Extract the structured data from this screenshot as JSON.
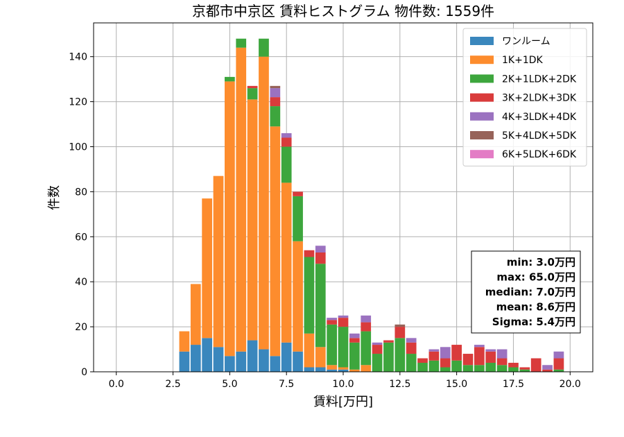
{
  "chart_data": {
    "type": "bar",
    "stacked": true,
    "title": "京都市中京区 賃料ヒストグラム  物件数: 1559件",
    "xlabel": "賃料[万円]",
    "ylabel": "件数",
    "xlim": [
      -1.0,
      21.0
    ],
    "ylim": [
      0,
      155
    ],
    "x_ticks": [
      0.0,
      2.5,
      5.0,
      7.5,
      10.0,
      12.5,
      15.0,
      17.5,
      20.0
    ],
    "x_tick_labels": [
      "0.0",
      "2.5",
      "5.0",
      "7.5",
      "10.0",
      "12.5",
      "15.0",
      "17.5",
      "20.0"
    ],
    "y_ticks": [
      0,
      20,
      40,
      60,
      80,
      100,
      120,
      140
    ],
    "y_tick_labels": [
      "0",
      "20",
      "40",
      "60",
      "80",
      "100",
      "120",
      "140"
    ],
    "grid": true,
    "legend_position": "top-right",
    "bin_width": 0.5,
    "bin_centers": [
      3.0,
      3.5,
      4.0,
      4.5,
      5.0,
      5.5,
      6.0,
      6.5,
      7.0,
      7.5,
      8.0,
      8.5,
      9.0,
      9.5,
      10.0,
      10.5,
      11.0,
      11.5,
      12.0,
      12.5,
      13.0,
      13.5,
      14.0,
      14.5,
      15.0,
      15.5,
      16.0,
      16.5,
      17.0,
      17.5,
      18.0,
      18.5,
      19.0,
      19.5
    ],
    "series": [
      {
        "name": "ワンルーム",
        "color": "#3a87bd",
        "values": [
          9,
          12,
          15,
          11,
          7,
          9,
          14,
          10,
          7,
          13,
          9,
          2,
          2,
          1,
          1,
          0,
          0,
          0,
          0,
          0,
          0,
          0,
          0,
          0,
          0,
          0,
          0,
          0,
          0,
          0,
          0,
          0,
          0,
          0
        ]
      },
      {
        "name": "1K+1DK",
        "color": "#fd8c2d",
        "values": [
          9,
          27,
          62,
          76,
          122,
          135,
          107,
          130,
          102,
          71,
          49,
          15,
          9,
          2,
          1,
          1,
          3,
          0,
          0,
          0,
          0,
          0,
          0,
          0,
          0,
          0,
          0,
          0,
          0,
          0,
          0,
          0,
          0,
          0
        ]
      },
      {
        "name": "2K+1LDK+2DK",
        "color": "#3da63d",
        "values": [
          0,
          0,
          0,
          0,
          2,
          4,
          5,
          8,
          9,
          16,
          20,
          34,
          37,
          18,
          18,
          12,
          15,
          8,
          13,
          15,
          8,
          4,
          5,
          2,
          5,
          3,
          3,
          4,
          3,
          2,
          1,
          0,
          0,
          1
        ]
      },
      {
        "name": "3K+2LDK+3DK",
        "color": "#d93b3b",
        "values": [
          0,
          0,
          0,
          0,
          0,
          0,
          1,
          0,
          4,
          4,
          2,
          3,
          5,
          2,
          4,
          2,
          4,
          4,
          1,
          5,
          5,
          2,
          4,
          4,
          7,
          5,
          8,
          5,
          3,
          2,
          1,
          6,
          1,
          5
        ]
      },
      {
        "name": "4K+3LDK+4DK",
        "color": "#9b72c0",
        "values": [
          0,
          0,
          0,
          0,
          0,
          0,
          0,
          0,
          4,
          2,
          0,
          0,
          3,
          1,
          1,
          2,
          3,
          1,
          0,
          0,
          2,
          0,
          1,
          5,
          0,
          0,
          1,
          1,
          4,
          0,
          0,
          0,
          2,
          3
        ]
      },
      {
        "name": "5K+4LDK+5DK",
        "color": "#976359",
        "values": [
          0,
          0,
          0,
          0,
          0,
          0,
          0,
          0,
          1,
          0,
          0,
          0,
          0,
          0,
          0,
          0,
          0,
          0,
          0,
          1,
          0,
          0,
          0,
          0,
          0,
          0,
          0,
          0,
          0,
          0,
          0,
          0,
          0,
          0
        ]
      },
      {
        "name": "6K+5LDK+6DK",
        "color": "#e37cc5",
        "values": [
          0,
          0,
          0,
          0,
          0,
          0,
          0,
          0,
          0,
          0,
          0,
          0,
          0,
          0,
          0,
          0,
          0,
          0,
          0,
          0,
          0,
          0,
          0,
          0,
          0,
          0,
          0,
          0,
          0,
          0,
          0,
          0,
          0,
          0
        ]
      }
    ],
    "stats_box": {
      "position": "right",
      "lines": [
        "min: 3.0万円",
        "max: 65.0万円",
        "median: 7.0万円",
        "mean: 8.6万円",
        "Sigma: 5.4万円"
      ]
    }
  }
}
